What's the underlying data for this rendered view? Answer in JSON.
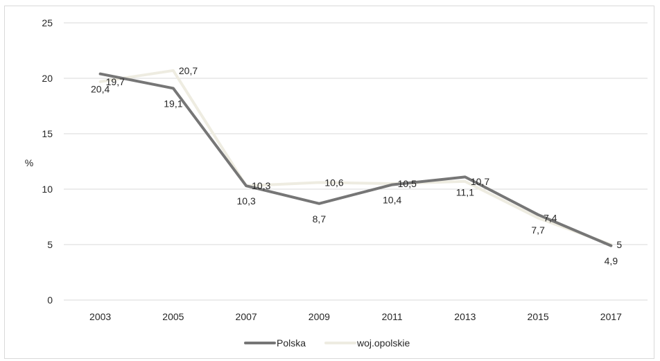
{
  "chart_data": {
    "type": "line",
    "categories": [
      "2003",
      "2005",
      "2007",
      "2009",
      "2011",
      "2013",
      "2015",
      "2017"
    ],
    "series": [
      {
        "name": "Polska",
        "values": [
          20.4,
          19.1,
          10.3,
          8.7,
          10.4,
          11.1,
          7.7,
          4.9
        ],
        "labels": [
          "20,4",
          "19,1",
          "10,3",
          "8,7",
          "10,4",
          "11,1",
          "7,7",
          "4,9"
        ],
        "color": "#767676",
        "label_position": "below"
      },
      {
        "name": "woj.opolskie",
        "values": [
          19.7,
          20.7,
          10.3,
          10.6,
          10.5,
          10.7,
          7.4,
          5.0
        ],
        "labels": [
          "19,7",
          "20,7",
          "10,3",
          "10,6",
          "10,5",
          "10,7",
          "7,4",
          "5"
        ],
        "color": "#eeece1",
        "label_position": "right"
      }
    ],
    "y_ticks": [
      "0",
      "5",
      "10",
      "15",
      "20",
      "25"
    ],
    "ylim": [
      0,
      25
    ],
    "ylabel": "%",
    "xlabel": "",
    "title": "",
    "grid": true,
    "legend_position": "bottom"
  }
}
